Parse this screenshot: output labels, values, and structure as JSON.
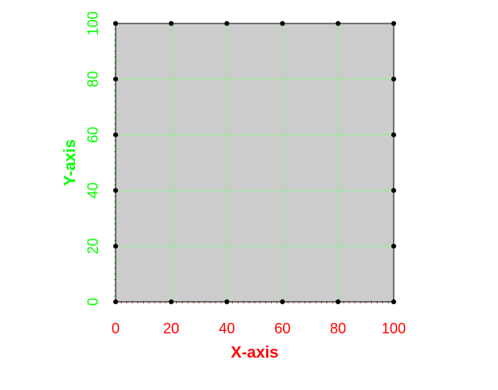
{
  "chart_data": {
    "type": "scatter",
    "title": "",
    "xlabel": "X-axis",
    "ylabel": "Y-axis",
    "xlim": [
      0,
      100
    ],
    "ylim": [
      0,
      100
    ],
    "x_ticks": [
      "0",
      "20",
      "40",
      "60",
      "80",
      "100"
    ],
    "y_ticks": [
      "0",
      "20",
      "40",
      "60",
      "80",
      "100"
    ],
    "grid": true,
    "points": [
      {
        "x": 0,
        "y": 0
      },
      {
        "x": 20,
        "y": 0
      },
      {
        "x": 40,
        "y": 0
      },
      {
        "x": 60,
        "y": 0
      },
      {
        "x": 80,
        "y": 0
      },
      {
        "x": 100,
        "y": 0
      },
      {
        "x": 0,
        "y": 100
      },
      {
        "x": 20,
        "y": 100
      },
      {
        "x": 40,
        "y": 100
      },
      {
        "x": 60,
        "y": 100
      },
      {
        "x": 80,
        "y": 100
      },
      {
        "x": 100,
        "y": 100
      },
      {
        "x": 0,
        "y": 20
      },
      {
        "x": 0,
        "y": 40
      },
      {
        "x": 0,
        "y": 60
      },
      {
        "x": 0,
        "y": 80
      },
      {
        "x": 100,
        "y": 20
      },
      {
        "x": 100,
        "y": 40
      },
      {
        "x": 100,
        "y": 60
      },
      {
        "x": 100,
        "y": 80
      }
    ],
    "colors": {
      "plot_background": "#cccccc",
      "grid": "#90ee90",
      "x_text": "#ff0000",
      "y_text": "#00ff00",
      "points": "#000000",
      "frame": "#000000"
    }
  }
}
